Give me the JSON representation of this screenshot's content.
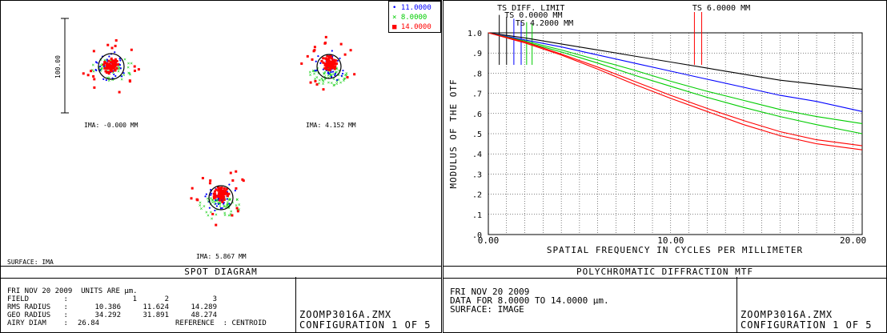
{
  "spot": {
    "title": "SPOT DIAGRAM",
    "scale_label": "100.00",
    "surface_label": "SURFACE: IMA",
    "fields": [
      {
        "label": "IMA: -0.000 MM"
      },
      {
        "label": "IMA: 4.152 MM"
      },
      {
        "label": "IMA: 5.867 MM"
      }
    ],
    "legend": [
      {
        "label": "11.0000",
        "color": "#0000ff"
      },
      {
        "label": "8.0000",
        "color": "#00cc00"
      },
      {
        "label": "14.0000",
        "color": "#ff0000"
      }
    ],
    "info": {
      "line1": "FRI NOV 20 2009  UNITS ARE µm.",
      "field_label": "FIELD        :",
      "field_values": [
        "1",
        "2",
        "3"
      ],
      "rms_label": "RMS RADIUS   :",
      "rms_values": [
        "10.386",
        "11.624",
        "14.289"
      ],
      "geo_label": "GEO RADIUS   :",
      "geo_values": [
        "34.292",
        "31.891",
        "48.274"
      ],
      "airy_label": "AIRY DIAM    :",
      "airy_value": "26.84",
      "reference": "REFERENCE  : CENTROID"
    },
    "file": "ZOOMP3016A.ZMX",
    "config": "CONFIGURATION 1 OF 5"
  },
  "mtf": {
    "title": "POLYCHROMATIC DIFFRACTION MTF",
    "info_line1": "FRI NOV 20 2009",
    "info_line2": "DATA FOR 8.0000 TO 14.0000 µm.",
    "info_line3": "SURFACE: IMAGE",
    "file": "ZOOMP3016A.ZMX",
    "config": "CONFIGURATION 1 OF 5"
  },
  "chart_data": {
    "type": "line",
    "xlabel": "SPATIAL FREQUENCY IN CYCLES PER MILLIMETER",
    "ylabel": "MODULUS OF THE OTF",
    "xlim": [
      0,
      20.5
    ],
    "ylim": [
      0,
      1.0
    ],
    "x_ticks": [
      "0.00",
      "10.00",
      "20.00"
    ],
    "y_ticks": [
      ".0",
      ".1",
      ".2",
      ".3",
      ".4",
      ".5",
      ".6",
      ".7",
      ".8",
      ".9",
      "1.0"
    ],
    "grid": true,
    "field_labels": [
      {
        "text": "TS DIFF. LIMIT",
        "x": 0.4
      },
      {
        "text": "TS 0.0000 MM",
        "x": 0.8
      },
      {
        "text": "TS 4.2000 MM",
        "x": 1.4
      },
      {
        "text": "TS 6.0000 MM",
        "x": 11.1
      }
    ],
    "series": [
      {
        "color": "#000000",
        "x": [
          0,
          2,
          4,
          6,
          8,
          10,
          12,
          14,
          16,
          18,
          20.5
        ],
        "values": [
          1.0,
          0.975,
          0.945,
          0.915,
          0.885,
          0.855,
          0.825,
          0.795,
          0.765,
          0.745,
          0.72
        ]
      },
      {
        "color": "#0000ff",
        "x": [
          0,
          2,
          4,
          6,
          8,
          10,
          12,
          14,
          16,
          18,
          20.5
        ],
        "values": [
          1.0,
          0.965,
          0.93,
          0.89,
          0.85,
          0.81,
          0.77,
          0.73,
          0.69,
          0.66,
          0.61
        ]
      },
      {
        "color": "#00cc00",
        "x": [
          0,
          2,
          4,
          6,
          8,
          10,
          12,
          14,
          16,
          18,
          20.5
        ],
        "values": [
          1.0,
          0.96,
          0.915,
          0.865,
          0.815,
          0.76,
          0.71,
          0.665,
          0.62,
          0.585,
          0.55
        ]
      },
      {
        "color": "#00cc00",
        "x": [
          0,
          2,
          4,
          6,
          8,
          10,
          12,
          14,
          16,
          18,
          20.5
        ],
        "values": [
          1.0,
          0.955,
          0.905,
          0.85,
          0.79,
          0.735,
          0.68,
          0.63,
          0.585,
          0.545,
          0.5
        ]
      },
      {
        "color": "#ff0000",
        "x": [
          0,
          2,
          4,
          6,
          8,
          10,
          12,
          14,
          16,
          18,
          20.5
        ],
        "values": [
          1.0,
          0.955,
          0.895,
          0.83,
          0.76,
          0.69,
          0.625,
          0.565,
          0.51,
          0.47,
          0.44
        ]
      },
      {
        "color": "#ff0000",
        "x": [
          0,
          2,
          4,
          6,
          8,
          10,
          12,
          14,
          16,
          18,
          20.5
        ],
        "values": [
          1.0,
          0.95,
          0.89,
          0.82,
          0.745,
          0.675,
          0.61,
          0.545,
          0.49,
          0.45,
          0.42
        ]
      }
    ]
  }
}
